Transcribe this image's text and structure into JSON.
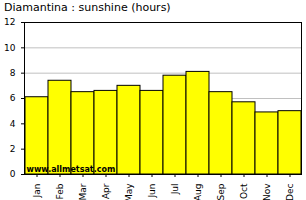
{
  "chart_data": {
    "type": "bar",
    "title": "Diamantina : sunshine (hours)",
    "categories": [
      "Jan",
      "Feb",
      "Mar",
      "Apr",
      "May",
      "Jun",
      "Jul",
      "Aug",
      "Sep",
      "Oct",
      "Nov",
      "Dec"
    ],
    "values": [
      6.1,
      7.4,
      6.5,
      6.6,
      7.0,
      6.6,
      7.8,
      8.1,
      6.5,
      5.7,
      4.9,
      5.0
    ],
    "color": "#ffff00",
    "ylim": [
      0,
      12
    ],
    "yticks": [
      0,
      2,
      4,
      6,
      8,
      10,
      12
    ],
    "grid": true,
    "annotations": [
      "www.allmetsat.com"
    ]
  }
}
